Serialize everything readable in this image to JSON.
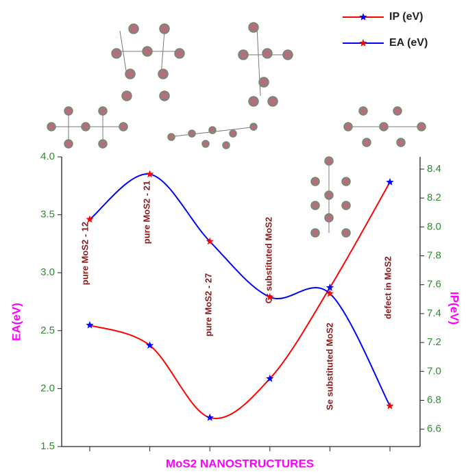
{
  "chart_data": {
    "type": "line",
    "x_label": "MoS2 NANOSTRUCTURES",
    "y_label": "EA(eV)",
    "y2_label": "IP(eV)",
    "categories": [
      "pure MoS2 - 12",
      "pure MoS2 - 21",
      "pure MoS2 - 27",
      "Cr substituted MoS2",
      "Se substituted MoS2",
      "defect in MoS2"
    ],
    "series": [
      {
        "name": "IP (eV)",
        "color": "#ff0000",
        "marker_color": "#0000ff",
        "axis": "y2",
        "values": [
          7.32,
          7.18,
          6.68,
          6.95,
          7.58,
          8.31
        ]
      },
      {
        "name": "EA (eV)",
        "color": "#0000ff",
        "marker_color": "#ff0000",
        "values": [
          3.46,
          3.85,
          3.27,
          2.79,
          2.82,
          1.85
        ]
      }
    ],
    "ylim": [
      1.5,
      4.0
    ],
    "yticks": [
      1.5,
      {
        "value": 2,
        "label": "2.0"
      },
      2.5,
      {
        "value": 3,
        "label": "3.0"
      },
      3.5,
      {
        "value": 4,
        "label": "4.0"
      }
    ],
    "y2lim": [
      6.48,
      8.485
    ],
    "y2ticks": [
      6.6,
      6.8,
      {
        "value": 7,
        "label": "7.0"
      },
      7.2,
      7.4,
      7.6,
      7.8,
      {
        "value": 8,
        "label": "8.0"
      },
      8.2,
      8.4
    ]
  }
}
